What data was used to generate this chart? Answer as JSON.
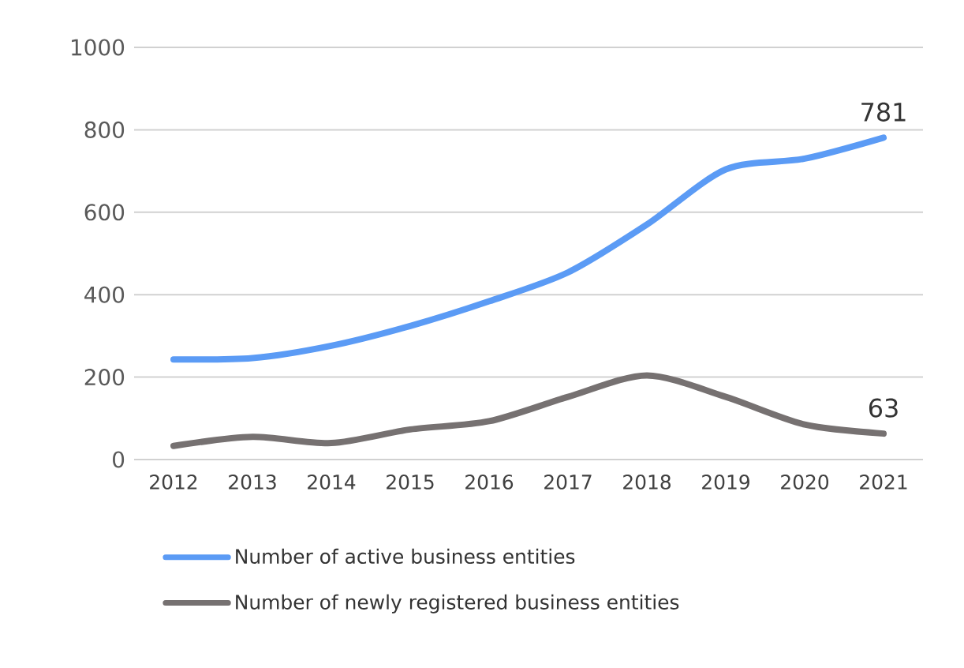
{
  "chart_data": {
    "type": "line",
    "categories": [
      "2012",
      "2013",
      "2014",
      "2015",
      "2016",
      "2017",
      "2018",
      "2019",
      "2020",
      "2021"
    ],
    "series": [
      {
        "name": "Number of active business entities",
        "color": "#5b9bf5",
        "values": [
          243,
          246,
          276,
          324,
          384,
          454,
          570,
          704,
          730,
          781
        ],
        "value_labels": [
          null,
          null,
          null,
          null,
          null,
          null,
          null,
          null,
          null,
          "781"
        ]
      },
      {
        "name": "Number of newly registered business entities",
        "color": "#767171",
        "values": [
          33,
          55,
          40,
          73,
          93,
          152,
          204,
          152,
          85,
          63
        ],
        "value_labels": [
          null,
          null,
          null,
          null,
          null,
          null,
          null,
          null,
          null,
          "63"
        ]
      }
    ],
    "ylim": [
      0,
      1000
    ],
    "yticks": [
      0,
      200,
      400,
      600,
      800,
      1000
    ],
    "grid": "y",
    "legend": "bottom",
    "marker": "none",
    "line_style": "solid"
  }
}
